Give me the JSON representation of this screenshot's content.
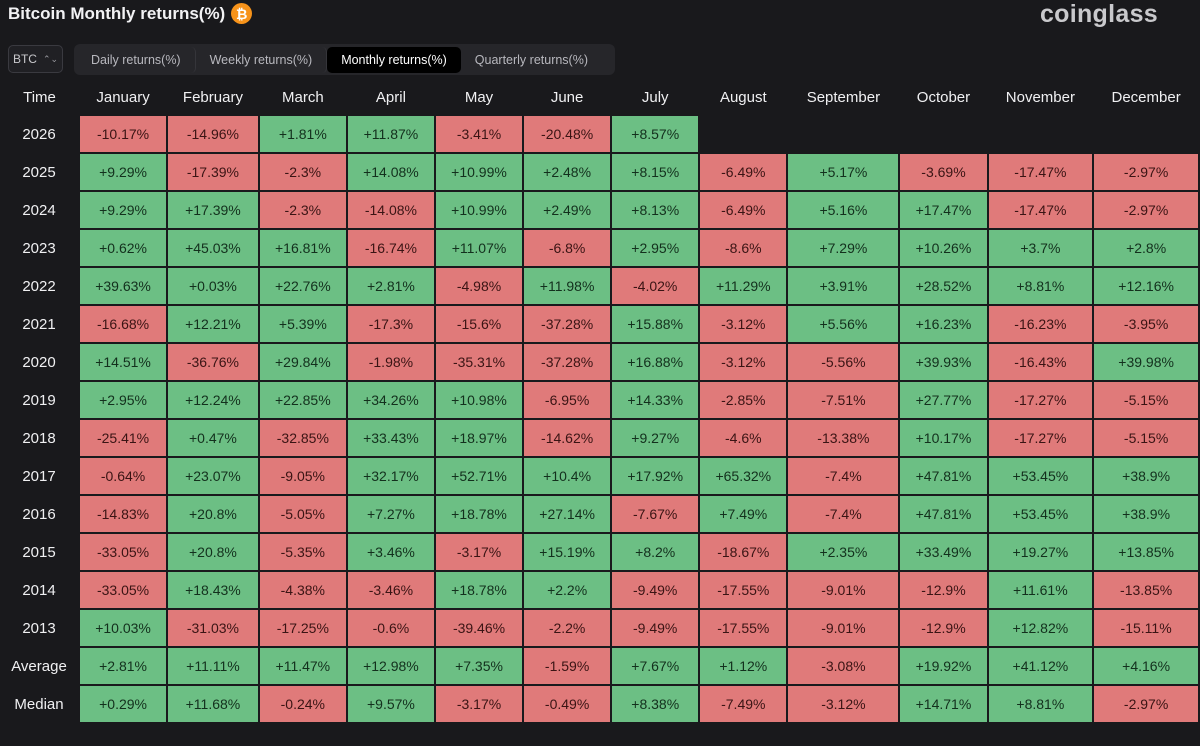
{
  "header": {
    "title": "Bitcoin Monthly returns(%)",
    "coin_icon": "bitcoin-icon",
    "brand": "coinglass"
  },
  "selector": {
    "value": "BTC",
    "icon": "chevron-updown-icon"
  },
  "tabs": [
    {
      "label": "Daily returns(%)",
      "active": false
    },
    {
      "label": "Weekly returns(%)",
      "active": false
    },
    {
      "label": "Monthly returns(%)",
      "active": true
    },
    {
      "label": "Quarterly returns(%)",
      "active": false
    }
  ],
  "colors": {
    "positive": "#6cbf84",
    "negative": "#e07a7a",
    "background": "#19191c",
    "brand_orange": "#f7931a"
  },
  "chart_data": {
    "type": "table",
    "title": "Bitcoin Monthly returns(%)",
    "columns": [
      "Time",
      "January",
      "February",
      "March",
      "April",
      "May",
      "June",
      "July",
      "August",
      "September",
      "October",
      "November",
      "December"
    ],
    "rows": [
      {
        "label": "2026",
        "values": [
          "-10.17%",
          "-14.96%",
          "+1.81%",
          "+11.87%",
          "-3.41%",
          "-20.48%",
          "+8.57%",
          "",
          "",
          "",
          "",
          ""
        ]
      },
      {
        "label": "2025",
        "values": [
          "+9.29%",
          "-17.39%",
          "-2.3%",
          "+14.08%",
          "+10.99%",
          "+2.48%",
          "+8.15%",
          "-6.49%",
          "+5.17%",
          "-3.69%",
          "-17.47%",
          "-2.97%"
        ]
      },
      {
        "label": "2024",
        "values": [
          "+9.29%",
          "+17.39%",
          "-2.3%",
          "-14.08%",
          "+10.99%",
          "+2.49%",
          "+8.13%",
          "-6.49%",
          "+5.16%",
          "+17.47%",
          "-17.47%",
          "-2.97%"
        ]
      },
      {
        "label": "2023",
        "values": [
          "+0.62%",
          "+45.03%",
          "+16.81%",
          "-16.74%",
          "+11.07%",
          "-6.8%",
          "+2.95%",
          "-8.6%",
          "+7.29%",
          "+10.26%",
          "+3.7%",
          "+2.8%"
        ]
      },
      {
        "label": "2022",
        "values": [
          "+39.63%",
          "+0.03%",
          "+22.76%",
          "+2.81%",
          "-4.98%",
          "+11.98%",
          "-4.02%",
          "+11.29%",
          "+3.91%",
          "+28.52%",
          "+8.81%",
          "+12.16%"
        ]
      },
      {
        "label": "2021",
        "values": [
          "-16.68%",
          "+12.21%",
          "+5.39%",
          "-17.3%",
          "-15.6%",
          "-37.28%",
          "+15.88%",
          "-3.12%",
          "+5.56%",
          "+16.23%",
          "-16.23%",
          "-3.95%"
        ]
      },
      {
        "label": "2020",
        "values": [
          "+14.51%",
          "-36.76%",
          "+29.84%",
          "-1.98%",
          "-35.31%",
          "-37.28%",
          "+16.88%",
          "-3.12%",
          "-5.56%",
          "+39.93%",
          "-16.43%",
          "+39.98%"
        ]
      },
      {
        "label": "2019",
        "values": [
          "+2.95%",
          "+12.24%",
          "+22.85%",
          "+34.26%",
          "+10.98%",
          "-6.95%",
          "+14.33%",
          "-2.85%",
          "-7.51%",
          "+27.77%",
          "-17.27%",
          "-5.15%"
        ]
      },
      {
        "label": "2018",
        "values": [
          "-25.41%",
          "+0.47%",
          "-32.85%",
          "+33.43%",
          "+18.97%",
          "-14.62%",
          "+9.27%",
          "-4.6%",
          "-13.38%",
          "+10.17%",
          "-17.27%",
          "-5.15%"
        ]
      },
      {
        "label": "2017",
        "values": [
          "-0.64%",
          "+23.07%",
          "-9.05%",
          "+32.17%",
          "+52.71%",
          "+10.4%",
          "+17.92%",
          "+65.32%",
          "-7.4%",
          "+47.81%",
          "+53.45%",
          "+38.9%"
        ]
      },
      {
        "label": "2016",
        "values": [
          "-14.83%",
          "+20.8%",
          "-5.05%",
          "+7.27%",
          "+18.78%",
          "+27.14%",
          "-7.67%",
          "+7.49%",
          "-7.4%",
          "+47.81%",
          "+53.45%",
          "+38.9%"
        ]
      },
      {
        "label": "2015",
        "values": [
          "-33.05%",
          "+20.8%",
          "-5.35%",
          "+3.46%",
          "-3.17%",
          "+15.19%",
          "+8.2%",
          "-18.67%",
          "+2.35%",
          "+33.49%",
          "+19.27%",
          "+13.85%"
        ]
      },
      {
        "label": "2014",
        "values": [
          "-33.05%",
          "+18.43%",
          "-4.38%",
          "-3.46%",
          "+18.78%",
          "+2.2%",
          "-9.49%",
          "-17.55%",
          "-9.01%",
          "-12.9%",
          "+11.61%",
          "-13.85%"
        ]
      },
      {
        "label": "2013",
        "values": [
          "+10.03%",
          "-31.03%",
          "-17.25%",
          "-0.6%",
          "-39.46%",
          "-2.2%",
          "-9.49%",
          "-17.55%",
          "-9.01%",
          "-12.9%",
          "+12.82%",
          "-15.11%"
        ]
      },
      {
        "label": "Average",
        "values": [
          "+2.81%",
          "+11.11%",
          "+11.47%",
          "+12.98%",
          "+7.35%",
          "-1.59%",
          "+7.67%",
          "+1.12%",
          "-3.08%",
          "+19.92%",
          "+41.12%",
          "+4.16%"
        ]
      },
      {
        "label": "Median",
        "values": [
          "+0.29%",
          "+11.68%",
          "-0.24%",
          "+9.57%",
          "-3.17%",
          "-0.49%",
          "+8.38%",
          "-7.49%",
          "-3.12%",
          "+14.71%",
          "+8.81%",
          "-2.97%"
        ]
      }
    ]
  }
}
